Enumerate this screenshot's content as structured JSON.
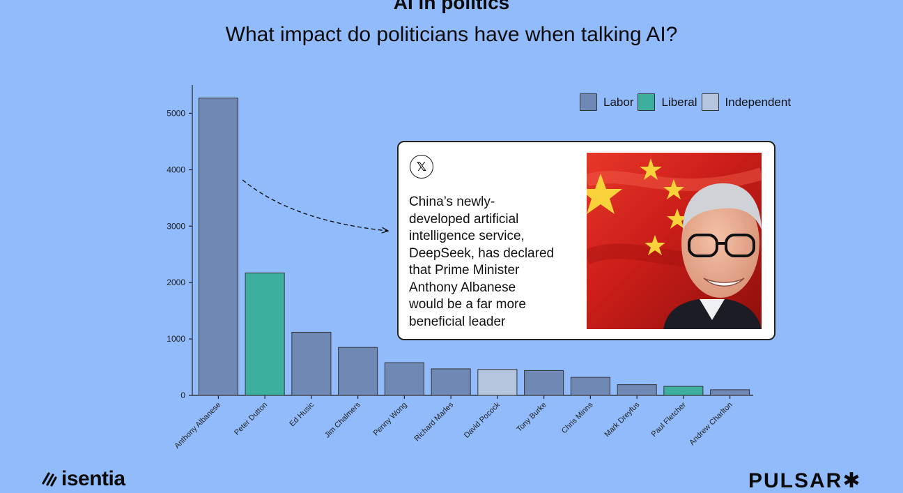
{
  "header": {
    "title": "AI in politics",
    "subtitle": "What impact do politicians have when talking AI?"
  },
  "chart_data": {
    "type": "bar",
    "categories": [
      "Anthony Albanese",
      "Peter Dutton",
      "Ed Husic",
      "Jim Chalmers",
      "Penny Wong",
      "Richard Marles",
      "David Pocock",
      "Tony Burke",
      "Chris Minns",
      "Mark Dreyfus",
      "Paul Fletcher",
      "Andrew Charlton"
    ],
    "values": [
      5270,
      2170,
      1120,
      850,
      580,
      470,
      460,
      440,
      320,
      190,
      160,
      100
    ],
    "party": [
      "Labor",
      "Liberal",
      "Labor",
      "Labor",
      "Labor",
      "Labor",
      "Independent",
      "Labor",
      "Labor",
      "Labor",
      "Liberal",
      "Labor"
    ],
    "yticks": [
      0,
      1000,
      2000,
      3000,
      4000,
      5000
    ],
    "ylim": [
      0,
      5500
    ],
    "grid": false,
    "legend_position": "top-right",
    "legend": [
      {
        "name": "Labor",
        "color": "#7088b4"
      },
      {
        "name": "Liberal",
        "color": "#3daf9e"
      },
      {
        "name": "Independent",
        "color": "#b5c5de"
      }
    ]
  },
  "tweet_card": {
    "platform_icon": "x-logo-icon",
    "platform_glyph": "𝕏",
    "text": "China’s newly-developed artificial intelligence service, DeepSeek, has declared that Prime Minister Anthony Albanese would be a far more beneficial leader",
    "lines": [
      "China’s newly-",
      "developed artificial",
      "intelligence service,",
      "DeepSeek, has declared",
      "that Prime Minister",
      "Anthony Albanese",
      "would be a far more",
      "beneficial leader"
    ],
    "image": "politician-with-china-flag-photo"
  },
  "footer": {
    "left_brand": "isentia",
    "right_brand": "PULSAR✱"
  }
}
